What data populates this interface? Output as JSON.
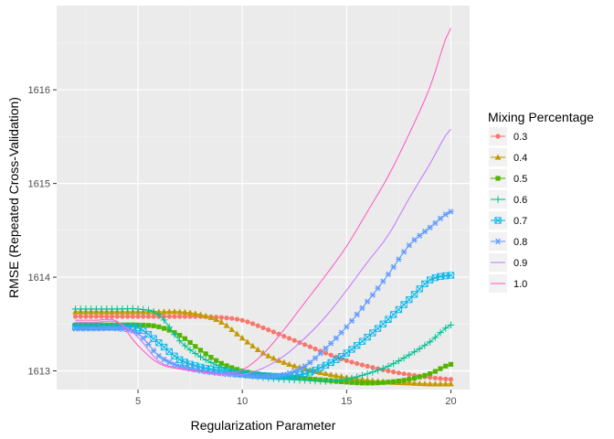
{
  "chart_data": {
    "type": "line",
    "xlabel": "Regularization Parameter",
    "ylabel": "RMSE (Repeated Cross-Validation)",
    "xlim": [
      1.1,
      20.9
    ],
    "ylim": [
      1612.8,
      1616.9
    ],
    "x_ticks": [
      5,
      10,
      15,
      20
    ],
    "y_ticks": [
      1613,
      1614,
      1615,
      1616
    ],
    "grid": true,
    "legend": {
      "title": "Mixing Percentage",
      "position": "right"
    },
    "x": [
      2,
      3,
      4,
      5,
      6,
      7,
      8,
      9,
      10,
      11,
      12,
      13,
      14,
      15,
      16,
      17,
      18,
      19,
      20
    ],
    "series": [
      {
        "name": "0.3",
        "color": "#F8766D",
        "marker": "circle",
        "values": [
          1613.58,
          1613.58,
          1613.58,
          1613.58,
          1613.58,
          1613.58,
          1613.58,
          1613.57,
          1613.54,
          1613.46,
          1613.37,
          1613.28,
          1613.19,
          1613.11,
          1613.05,
          1613.0,
          1612.96,
          1612.93,
          1612.91
        ]
      },
      {
        "name": "0.4",
        "color": "#C49A00",
        "marker": "triangle",
        "values": [
          1613.63,
          1613.63,
          1613.63,
          1613.63,
          1613.63,
          1613.63,
          1613.6,
          1613.52,
          1613.35,
          1613.19,
          1613.09,
          1613.02,
          1612.97,
          1612.93,
          1612.9,
          1612.88,
          1612.87,
          1612.86,
          1612.86
        ]
      },
      {
        "name": "0.5",
        "color": "#53B400",
        "marker": "square",
        "values": [
          1613.49,
          1613.49,
          1613.49,
          1613.49,
          1613.47,
          1613.38,
          1613.22,
          1613.08,
          1613.0,
          1612.96,
          1612.94,
          1612.92,
          1612.9,
          1612.88,
          1612.87,
          1612.88,
          1612.91,
          1612.97,
          1613.07
        ]
      },
      {
        "name": "0.6",
        "color": "#00C094",
        "marker": "plus",
        "values": [
          1613.66,
          1613.66,
          1613.66,
          1613.66,
          1613.6,
          1613.32,
          1613.15,
          1613.04,
          1612.97,
          1612.93,
          1612.91,
          1612.9,
          1612.89,
          1612.91,
          1612.97,
          1613.05,
          1613.17,
          1613.31,
          1613.49
        ]
      },
      {
        "name": "0.7",
        "color": "#00B6EB",
        "marker": "square-cross",
        "values": [
          1613.47,
          1613.47,
          1613.47,
          1613.46,
          1613.3,
          1613.12,
          1613.04,
          1613.0,
          1612.97,
          1612.95,
          1612.94,
          1612.97,
          1613.06,
          1613.19,
          1613.36,
          1613.55,
          1613.76,
          1613.97,
          1614.02
        ]
      },
      {
        "name": "0.8",
        "color": "#619CFF",
        "marker": "asterisk",
        "values": [
          1613.45,
          1613.45,
          1613.45,
          1613.4,
          1613.16,
          1613.05,
          1613.0,
          1612.97,
          1612.95,
          1612.94,
          1612.96,
          1613.05,
          1613.24,
          1613.47,
          1613.74,
          1614.03,
          1614.34,
          1614.53,
          1614.7
        ]
      },
      {
        "name": "0.9",
        "color": "#C77CFF",
        "marker": "none",
        "values": [
          1613.52,
          1613.52,
          1613.52,
          1613.36,
          1613.1,
          1613.03,
          1612.99,
          1612.96,
          1612.96,
          1613.03,
          1613.16,
          1613.35,
          1613.58,
          1613.86,
          1614.16,
          1614.45,
          1614.84,
          1615.21,
          1615.58
        ]
      },
      {
        "name": "1.0",
        "color": "#FF61C3",
        "marker": "none",
        "values": [
          1613.54,
          1613.54,
          1613.53,
          1613.27,
          1613.08,
          1613.02,
          1612.99,
          1612.97,
          1613.01,
          1613.18,
          1613.44,
          1613.73,
          1614.02,
          1614.33,
          1614.7,
          1615.08,
          1615.53,
          1616.03,
          1616.66
        ]
      }
    ]
  }
}
